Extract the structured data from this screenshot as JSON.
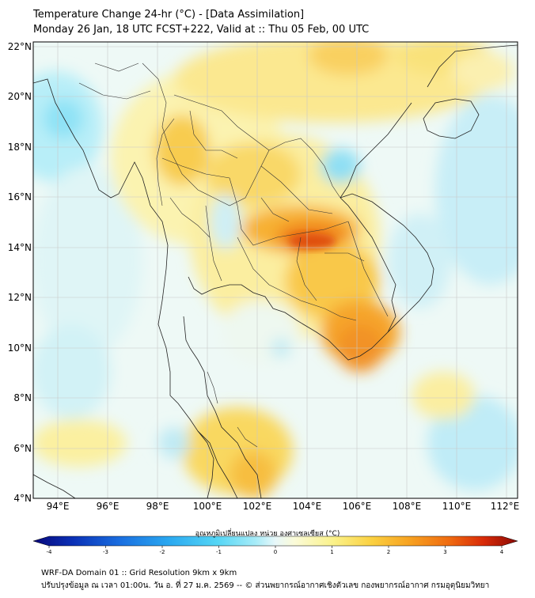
{
  "header": {
    "title_line1": "Temperature Change 24-hr (°C) - [Data Assimilation]",
    "title_line2": "Monday 26 Jan, 18 UTC FCST+222, Valid at :: Thu 05 Feb, 00 UTC"
  },
  "map": {
    "lat_labels": [
      "22°N",
      "20°N",
      "18°N",
      "16°N",
      "14°N",
      "12°N",
      "10°N",
      "8°N",
      "6°N",
      "4°N"
    ],
    "lon_labels": [
      "94°E",
      "96°E",
      "98°E",
      "100°E",
      "102°E",
      "104°E",
      "106°E",
      "108°E",
      "110°E",
      "112°E"
    ]
  },
  "colorbar": {
    "title": "อุณหภูมิเปลี่ยนแปลง หน่วย องศาเซลเซียส (°C)",
    "ticks": [
      "-4",
      "-3",
      "-2",
      "-1",
      "0",
      "1",
      "2",
      "3",
      "4"
    ],
    "min": -4,
    "max": 4,
    "colors": [
      "#08087a",
      "#0a2fb5",
      "#1a6fe0",
      "#2aa8f0",
      "#55d6f5",
      "#a8ecf8",
      "#e8f8fa",
      "#fbfbd8",
      "#fbf28a",
      "#fbd040",
      "#f7a020",
      "#ef6a10",
      "#d82a08",
      "#8a0a04"
    ]
  },
  "footer": {
    "line1": "WRF-DA Domain 01 :: Grid Resolution 9km x 9km",
    "line2": "ปรับปรุงข้อมูล ณ เวลา 01:00น. วัน อ. ที่ 27 ม.ค. 2569 -- © ส่วนพยากรณ์อากาศเชิงตัวเลข กองพยากรณ์อากาศ กรมอุตุนิยมวิทยา"
  }
}
